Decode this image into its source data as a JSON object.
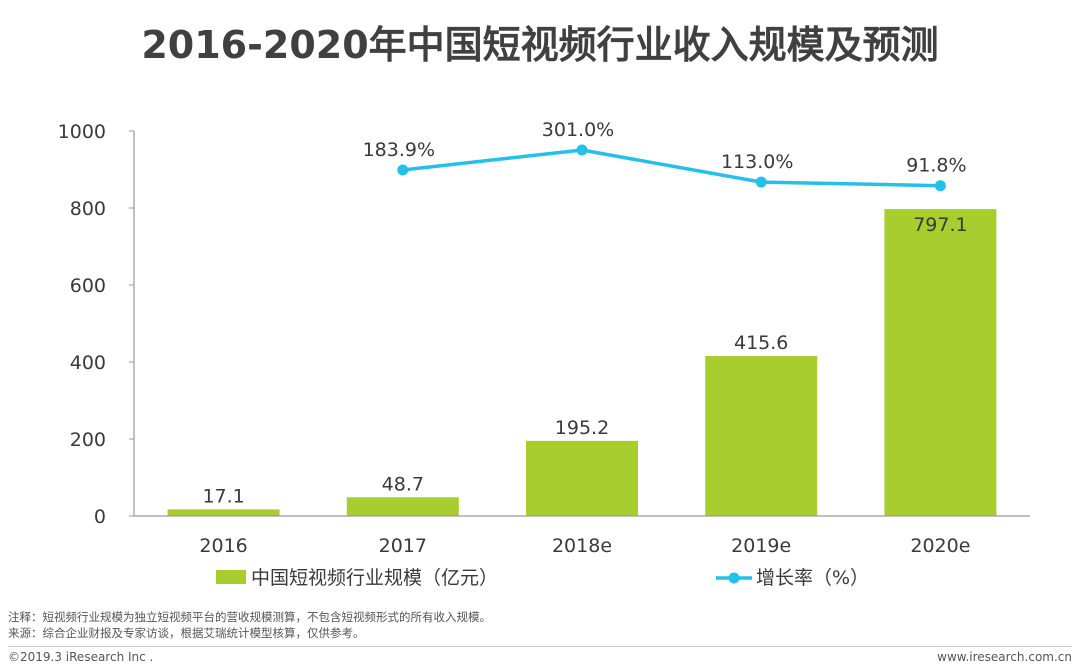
{
  "title": "2016-2020年中国短视频行业收入规模及预测",
  "colors": {
    "bar": "#a8cd2e",
    "line": "#23c0ea",
    "axis": "#9a9a9a",
    "text": "#3a3a3a"
  },
  "chart_data": {
    "type": "bar",
    "categories": [
      "2016",
      "2017",
      "2018e",
      "2019e",
      "2020e"
    ],
    "series": [
      {
        "name": "中国短视频行业规模（亿元）",
        "type": "bar",
        "axis": "left",
        "values": [
          17.1,
          48.7,
          195.2,
          415.6,
          797.1
        ],
        "labels": [
          "17.1",
          "48.7",
          "195.2",
          "415.6",
          "797.1"
        ]
      },
      {
        "name": "增长率（%）",
        "type": "line",
        "axis": "right",
        "values": [
          null,
          183.9,
          301.0,
          113.0,
          91.8
        ],
        "labels": [
          "",
          "183.9%",
          "301.0%",
          "113.0%",
          "91.8%"
        ]
      }
    ],
    "ylim": [
      0,
      1000
    ],
    "yticks": [
      "0",
      "200",
      "400",
      "600",
      "800",
      "1000"
    ],
    "ytick_values": [
      0,
      200,
      400,
      600,
      800,
      1000
    ],
    "legend_position": "bottom",
    "grid": false
  },
  "legend": {
    "bar_label": "中国短视频行业规模（亿元）",
    "line_label": "增长率（%）"
  },
  "notes": {
    "note": "注释：短视频行业规模为独立短视频平台的营收规模测算，不包含短视频形式的所有收入规模。",
    "source": "来源：综合企业财报及专家访谈，根据艾瑞统计模型核算，仅供参考。"
  },
  "footer": {
    "left": "©2019.3 iResearch Inc .",
    "right": "www.iresearch.com.cn"
  }
}
